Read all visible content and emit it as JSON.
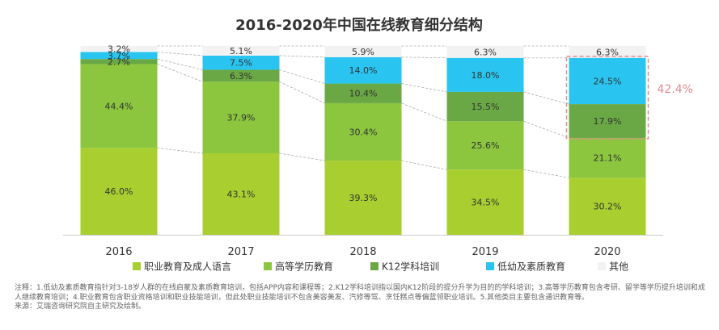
{
  "chart_data": {
    "type": "bar",
    "stacked": "percent",
    "title": "2016-2020年中国在线教育细分结构",
    "categories": [
      "2016",
      "2017",
      "2018",
      "2019",
      "2020"
    ],
    "series": [
      {
        "name": "职业教育及成人语言",
        "color": "#a8cf2f",
        "values": [
          46.0,
          43.1,
          39.3,
          34.5,
          30.2
        ]
      },
      {
        "name": "高等学历教育",
        "color": "#8cc63f",
        "values": [
          44.4,
          37.9,
          30.4,
          25.6,
          21.1
        ]
      },
      {
        "name": "K12学科培训",
        "color": "#6aa845",
        "values": [
          2.7,
          6.3,
          10.4,
          15.5,
          17.9
        ]
      },
      {
        "name": "低幼及素质教育",
        "color": "#29c5f0",
        "values": [
          3.7,
          7.5,
          14.0,
          18.0,
          24.5
        ]
      },
      {
        "name": "其他",
        "color": "#f2f2f2",
        "values": [
          3.2,
          5.1,
          5.9,
          6.3,
          6.3
        ]
      }
    ],
    "value_labels": [
      [
        "46.0%",
        "44.4%",
        "2.7%",
        "3.7%",
        "3.2%"
      ],
      [
        "43.1%",
        "37.9%",
        "6.3%",
        "7.5%",
        "5.1%"
      ],
      [
        "39.3%",
        "30.4%",
        "10.4%",
        "14.0%",
        "5.9%"
      ],
      [
        "34.5%",
        "25.6%",
        "15.5%",
        "18.0%",
        "6.3%"
      ],
      [
        "30.2%",
        "21.1%",
        "17.9%",
        "24.5%",
        "6.3%"
      ]
    ],
    "ylim": [
      0,
      100
    ],
    "legend_position": "bottom",
    "annotation": {
      "label": "42.4%",
      "category": "2020",
      "series": [
        "K12学科培训",
        "低幼及素质教育"
      ],
      "color": "#e58a8f"
    }
  },
  "notes": {
    "line1": "注释：1.低幼及素质教育指针对3-18岁人群的在线启蒙及素质教育培训，包括APP内容和课程等；2.K12学科培训指以国内K12阶段的提分升学为目的的学科培训；3.高等学历教育包含考研、留学等学历提升培训和成人继续教育培训；4.职业教育包含职业资格培训和职业技能培训，但此处职业技能培训不包含美容美发、汽修等驾、烹饪糕点等偏蓝领职业培训。5.其他类目主要包含通识教育等。",
    "source": "来源：艾瑞咨询研究院自主研究及绘制。"
  }
}
